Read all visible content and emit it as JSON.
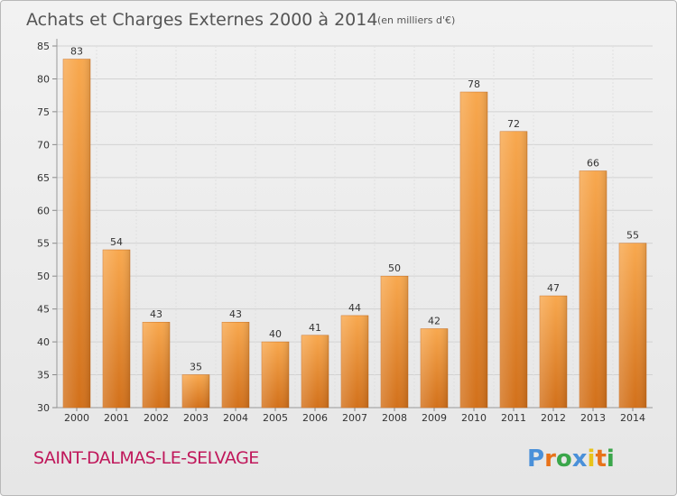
{
  "header": {
    "title": "Achats et Charges Externes 2000 à 2014",
    "unit": "(en milliers d'€)"
  },
  "footer": {
    "commune": "SAINT-DALMAS-LE-SELVAGE",
    "logo_text": "Proxiti"
  },
  "colors": {
    "bar_light": "#f8a84e",
    "bar_dark": "#d2701a",
    "commune": "#c0185b",
    "logo": [
      "#4a90d9",
      "#e8731a",
      "#3aa64a",
      "#4a90d9",
      "#e8c31a",
      "#e8731a",
      "#3aa64a"
    ]
  },
  "chart_data": {
    "type": "bar",
    "title": "Achats et Charges Externes 2000 à 2014",
    "subtitle": "(en milliers d'€)",
    "xlabel": "",
    "ylabel": "",
    "categories": [
      "2000",
      "2001",
      "2002",
      "2003",
      "2004",
      "2005",
      "2006",
      "2007",
      "2008",
      "2009",
      "2010",
      "2011",
      "2012",
      "2013",
      "2014"
    ],
    "values": [
      83,
      54,
      43,
      35,
      43,
      40,
      41,
      44,
      50,
      42,
      78,
      72,
      47,
      66,
      55
    ],
    "ylim": [
      30,
      85
    ],
    "yticks": [
      30,
      35,
      40,
      45,
      50,
      55,
      60,
      65,
      70,
      75,
      80,
      85
    ],
    "grid": true,
    "legend": "none"
  }
}
